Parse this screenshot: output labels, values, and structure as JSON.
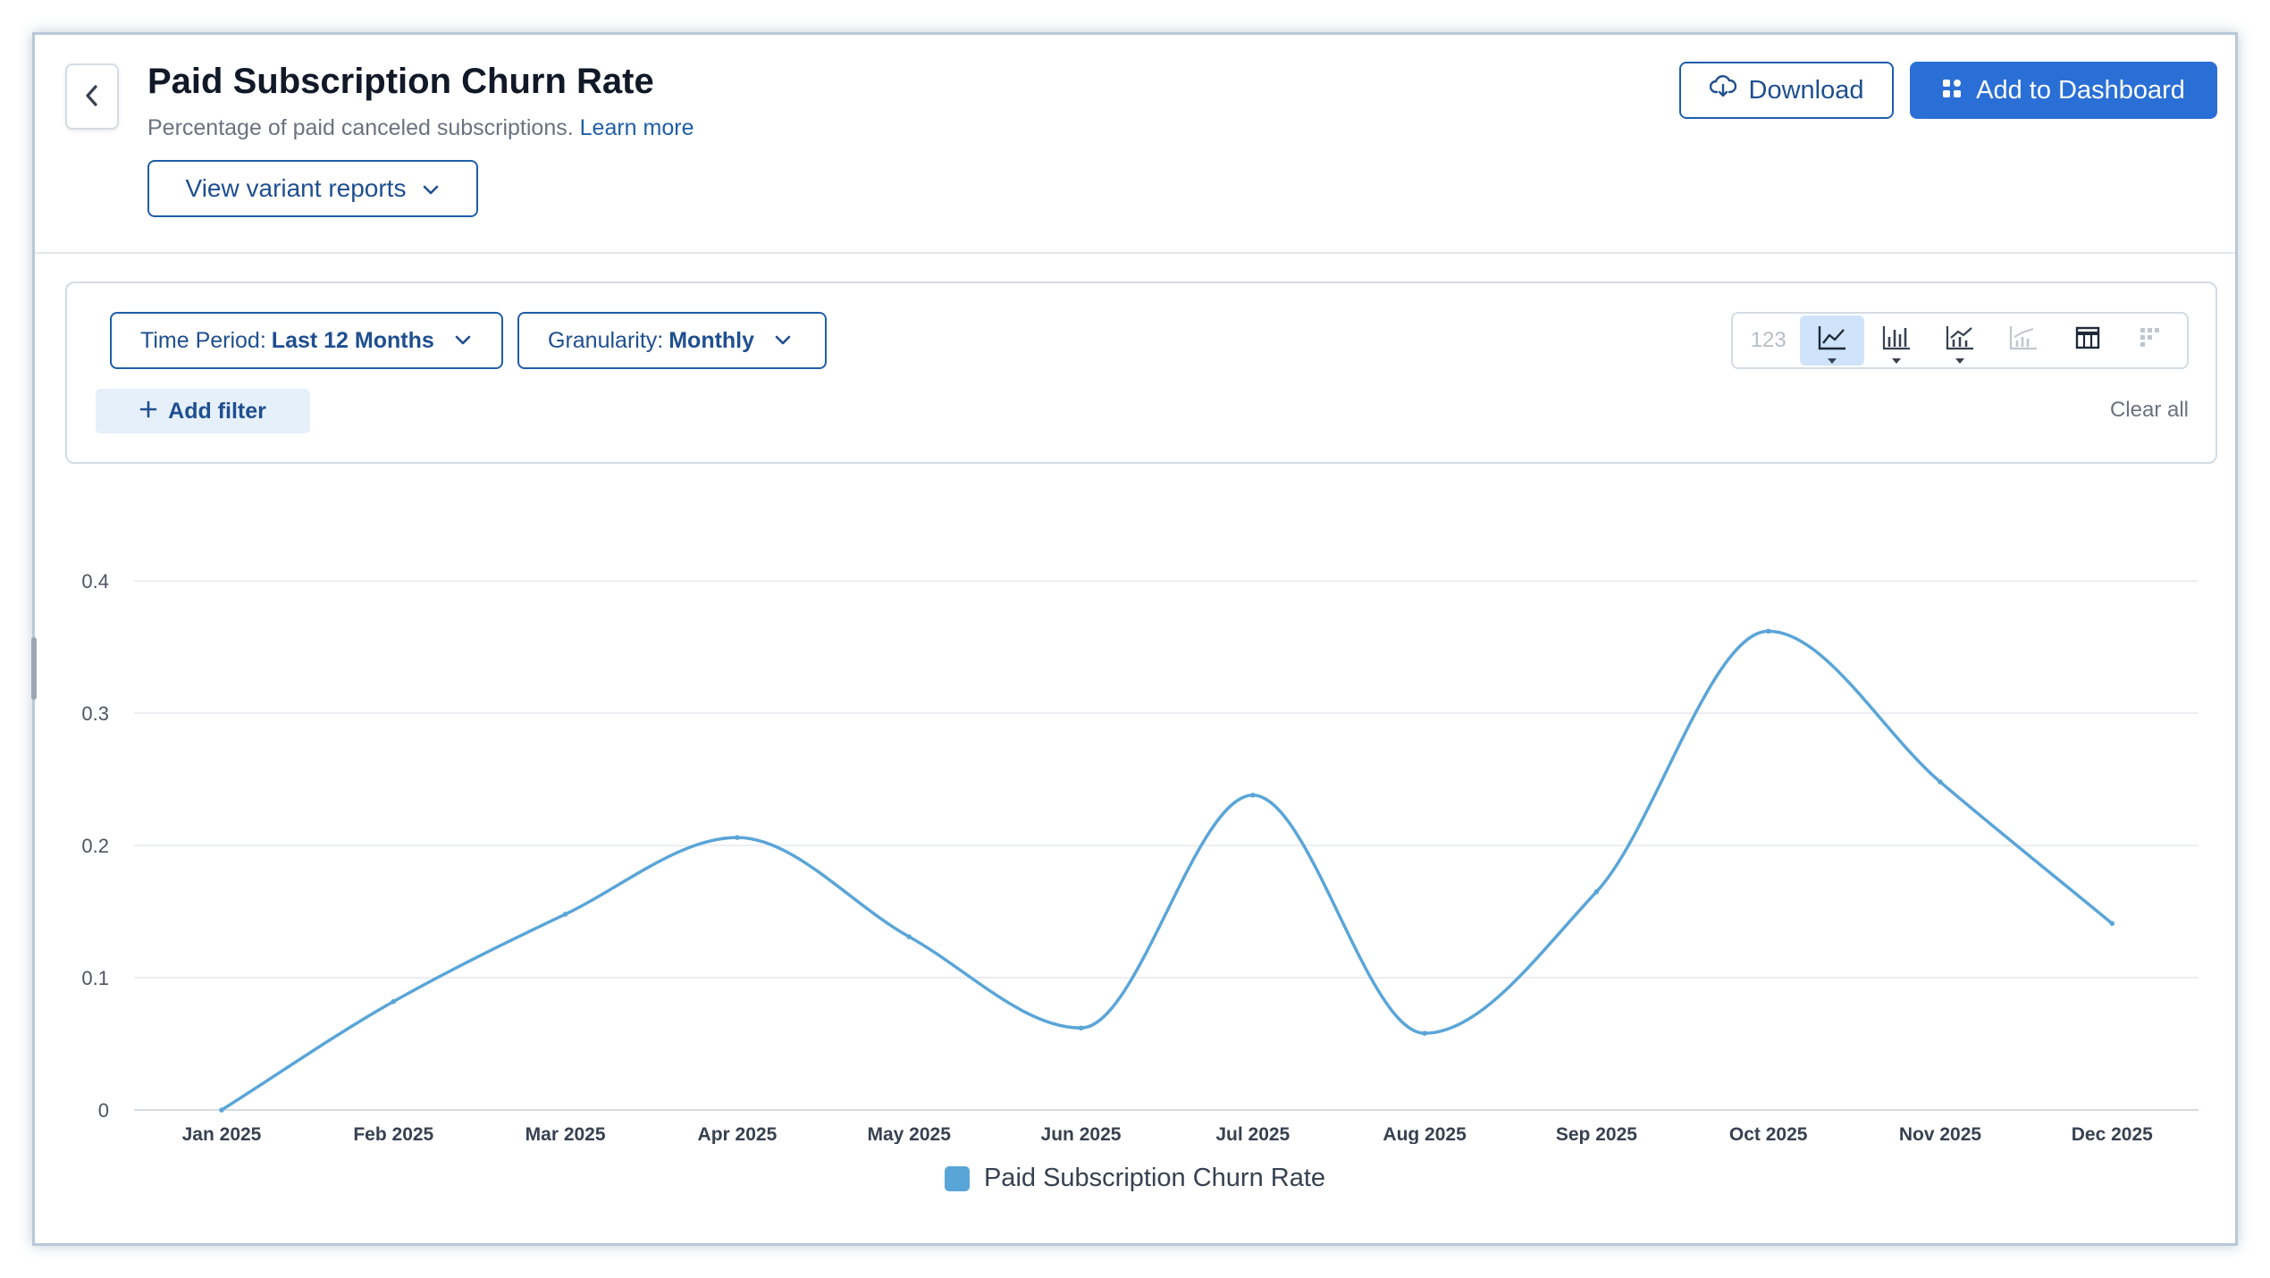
{
  "header": {
    "title": "Paid Subscription Churn Rate",
    "subtitle": "Percentage of paid canceled subscriptions.",
    "learn_more": "Learn more",
    "variant_button": "View variant reports",
    "download_button": "Download",
    "dashboard_button": "Add to Dashboard"
  },
  "filters": {
    "time_period_label": "Time Period:",
    "time_period_value": "Last 12 Months",
    "granularity_label": "Granularity:",
    "granularity_value": "Monthly",
    "add_filter": "Add filter",
    "clear_all": "Clear all"
  },
  "viz_toolbar": {
    "options": [
      {
        "name": "number",
        "label": "123",
        "state": "disabled"
      },
      {
        "name": "line-chart",
        "state": "active",
        "has_menu": true
      },
      {
        "name": "bar-chart",
        "state": "enabled",
        "has_menu": true
      },
      {
        "name": "combo-chart",
        "state": "enabled",
        "has_menu": true
      },
      {
        "name": "stacked-chart",
        "state": "disabled"
      },
      {
        "name": "table",
        "state": "enabled"
      },
      {
        "name": "heatmap",
        "state": "disabled"
      }
    ]
  },
  "colors": {
    "accent": "#2a6fd6",
    "series_line": "#5aa5d8",
    "border_blue": "#1f5ea8"
  },
  "chart_data": {
    "type": "line",
    "smooth": true,
    "categories": [
      "Jan 2025",
      "Feb 2025",
      "Mar 2025",
      "Apr 2025",
      "May 2025",
      "Jun 2025",
      "Jul 2025",
      "Aug 2025",
      "Sep 2025",
      "Oct 2025",
      "Nov 2025",
      "Dec 2025"
    ],
    "series": [
      {
        "name": "Paid Subscription Churn Rate",
        "values": [
          0.0,
          0.082,
          0.148,
          0.206,
          0.131,
          0.062,
          0.238,
          0.058,
          0.165,
          0.362,
          0.248,
          0.141
        ]
      }
    ],
    "ylim": [
      0,
      0.4
    ],
    "yticks": [
      "0",
      "0.1",
      "0.2",
      "0.3",
      "0.4"
    ],
    "grid": true,
    "legend_position": "bottom"
  }
}
